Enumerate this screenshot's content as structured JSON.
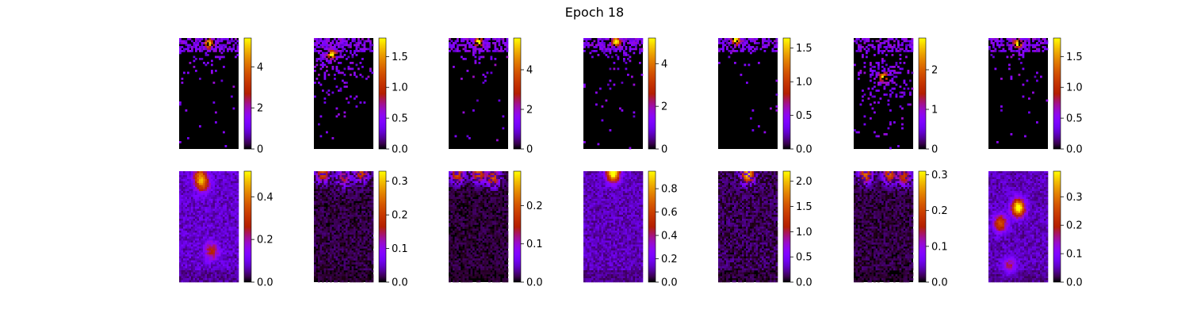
{
  "figure": {
    "title": "Epoch 18"
  },
  "chart_data": [
    {
      "type": "heatmap",
      "panel": "row1-col1",
      "colormap": "gnuplot",
      "vmin": 0,
      "vmax": 5.4,
      "colorbar_ticks": [
        "0",
        "2",
        "4"
      ],
      "pattern": "sparse",
      "hotspot": [
        0.5,
        0.05
      ],
      "spread": 0.35
    },
    {
      "type": "heatmap",
      "panel": "row1-col2",
      "colormap": "gnuplot",
      "vmin": 0,
      "vmax": 1.8,
      "colorbar_ticks": [
        "0.0",
        "0.5",
        "1.0",
        "1.5"
      ],
      "pattern": "sparse",
      "hotspot": [
        0.3,
        0.15
      ],
      "spread": 0.55
    },
    {
      "type": "heatmap",
      "panel": "row1-col3",
      "colormap": "gnuplot",
      "vmin": 0,
      "vmax": 5.6,
      "colorbar_ticks": [
        "0",
        "2",
        "4"
      ],
      "pattern": "sparse",
      "hotspot": [
        0.5,
        0.03
      ],
      "spread": 0.35
    },
    {
      "type": "heatmap",
      "panel": "row1-col4",
      "colormap": "gnuplot",
      "vmin": 0,
      "vmax": 5.2,
      "colorbar_ticks": [
        "0",
        "2",
        "4"
      ],
      "pattern": "sparse",
      "hotspot": [
        0.55,
        0.03
      ],
      "spread": 0.4
    },
    {
      "type": "heatmap",
      "panel": "row1-col5",
      "colormap": "gnuplot",
      "vmin": 0,
      "vmax": 1.65,
      "colorbar_ticks": [
        "0.0",
        "0.5",
        "1.0",
        "1.5"
      ],
      "pattern": "sparse",
      "hotspot": [
        0.3,
        0.02
      ],
      "spread": 0.25
    },
    {
      "type": "heatmap",
      "panel": "row1-col6",
      "colormap": "gnuplot",
      "vmin": 0,
      "vmax": 2.8,
      "colorbar_ticks": [
        "0",
        "1",
        "2"
      ],
      "pattern": "sparse",
      "hotspot": [
        0.5,
        0.35
      ],
      "spread": 0.45
    },
    {
      "type": "heatmap",
      "panel": "row1-col7",
      "colormap": "gnuplot",
      "vmin": 0,
      "vmax": 1.8,
      "colorbar_ticks": [
        "0.0",
        "0.5",
        "1.0",
        "1.5"
      ],
      "pattern": "sparse",
      "hotspot": [
        0.5,
        0.05
      ],
      "spread": 0.3
    },
    {
      "type": "heatmap",
      "panel": "row2-col1",
      "colormap": "gnuplot",
      "vmin": 0,
      "vmax": 0.52,
      "colorbar_ticks": [
        "0.0",
        "0.2",
        "0.4"
      ],
      "pattern": "blobs",
      "blobs": [
        [
          0.35,
          0.05,
          0.55
        ],
        [
          0.4,
          0.12,
          0.45
        ],
        [
          0.55,
          0.72,
          0.38
        ]
      ],
      "base": 0.16
    },
    {
      "type": "heatmap",
      "panel": "row2-col2",
      "colormap": "gnuplot",
      "vmin": 0,
      "vmax": 0.33,
      "colorbar_ticks": [
        "0.0",
        "0.1",
        "0.2",
        "0.3"
      ],
      "pattern": "blobs",
      "blobs": [
        [
          0.15,
          0.02,
          0.65
        ],
        [
          0.8,
          0.02,
          0.6
        ],
        [
          0.5,
          0.06,
          0.45
        ]
      ],
      "base": 0.06
    },
    {
      "type": "heatmap",
      "panel": "row2-col3",
      "colormap": "gnuplot",
      "vmin": 0,
      "vmax": 0.29,
      "colorbar_ticks": [
        "0.0",
        "0.1",
        "0.2"
      ],
      "pattern": "blobs",
      "blobs": [
        [
          0.15,
          0.03,
          0.65
        ],
        [
          0.5,
          0.02,
          0.7
        ],
        [
          0.75,
          0.06,
          0.65
        ]
      ],
      "base": 0.05
    },
    {
      "type": "heatmap",
      "panel": "row2-col4",
      "colormap": "gnuplot",
      "vmin": 0,
      "vmax": 0.95,
      "colorbar_ticks": [
        "0.0",
        "0.2",
        "0.4",
        "0.6",
        "0.8"
      ],
      "pattern": "blobs",
      "blobs": [
        [
          0.5,
          0.02,
          0.95
        ]
      ],
      "base": 0.14
    },
    {
      "type": "heatmap",
      "panel": "row2-col5",
      "colormap": "gnuplot",
      "vmin": 0,
      "vmax": 2.2,
      "colorbar_ticks": [
        "0.0",
        "0.5",
        "1.0",
        "1.5",
        "2.0"
      ],
      "pattern": "blobs",
      "blobs": [
        [
          0.5,
          0.03,
          0.9
        ]
      ],
      "base": 0.08
    },
    {
      "type": "heatmap",
      "panel": "row2-col6",
      "colormap": "gnuplot",
      "vmin": 0,
      "vmax": 0.31,
      "colorbar_ticks": [
        "0.0",
        "0.1",
        "0.2",
        "0.3"
      ],
      "pattern": "blobs",
      "blobs": [
        [
          0.2,
          0.03,
          0.7
        ],
        [
          0.6,
          0.03,
          0.65
        ],
        [
          0.85,
          0.05,
          0.55
        ]
      ],
      "base": 0.06
    },
    {
      "type": "heatmap",
      "panel": "row2-col7",
      "colormap": "gnuplot",
      "vmin": 0,
      "vmax": 0.39,
      "colorbar_ticks": [
        "0.0",
        "0.1",
        "0.2",
        "0.3"
      ],
      "pattern": "blobs",
      "blobs": [
        [
          0.5,
          0.33,
          0.95
        ],
        [
          0.2,
          0.47,
          0.55
        ],
        [
          0.35,
          0.85,
          0.3
        ]
      ],
      "base": 0.14
    }
  ]
}
